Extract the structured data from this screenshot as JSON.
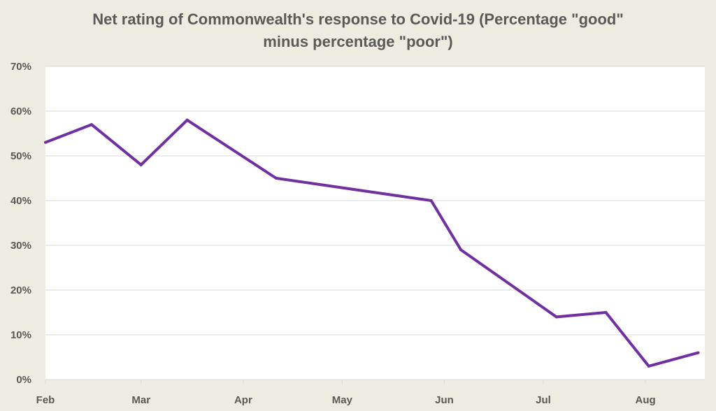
{
  "chart_data": {
    "type": "line",
    "title_line1": "Net rating of Commonwealth's response to Covid-19 (Percentage \"good\"",
    "title_line2": "minus percentage \"poor\")",
    "xlabel": "",
    "ylabel": "",
    "x_ticks": [
      "Feb",
      "Mar",
      "Apr",
      "May",
      "Jun",
      "Jul",
      "Aug"
    ],
    "y_ticks": [
      "0%",
      "10%",
      "20%",
      "30%",
      "40%",
      "50%",
      "60%",
      "70%"
    ],
    "ylim": [
      0,
      70
    ],
    "grid": true,
    "series": [
      {
        "color": "#7030a0",
        "points": [
          {
            "x": "2020-02-01",
            "y": 53
          },
          {
            "x": "2020-02-15",
            "y": 57
          },
          {
            "x": "2020-03-01",
            "y": 48
          },
          {
            "x": "2020-03-15",
            "y": 58
          },
          {
            "x": "2020-04-11",
            "y": 45
          },
          {
            "x": "2020-05-28",
            "y": 40
          },
          {
            "x": "2020-06-06",
            "y": 29
          },
          {
            "x": "2020-07-05",
            "y": 14
          },
          {
            "x": "2020-07-20",
            "y": 15
          },
          {
            "x": "2020-08-02",
            "y": 3
          },
          {
            "x": "2020-08-17",
            "y": 6
          }
        ]
      }
    ]
  }
}
